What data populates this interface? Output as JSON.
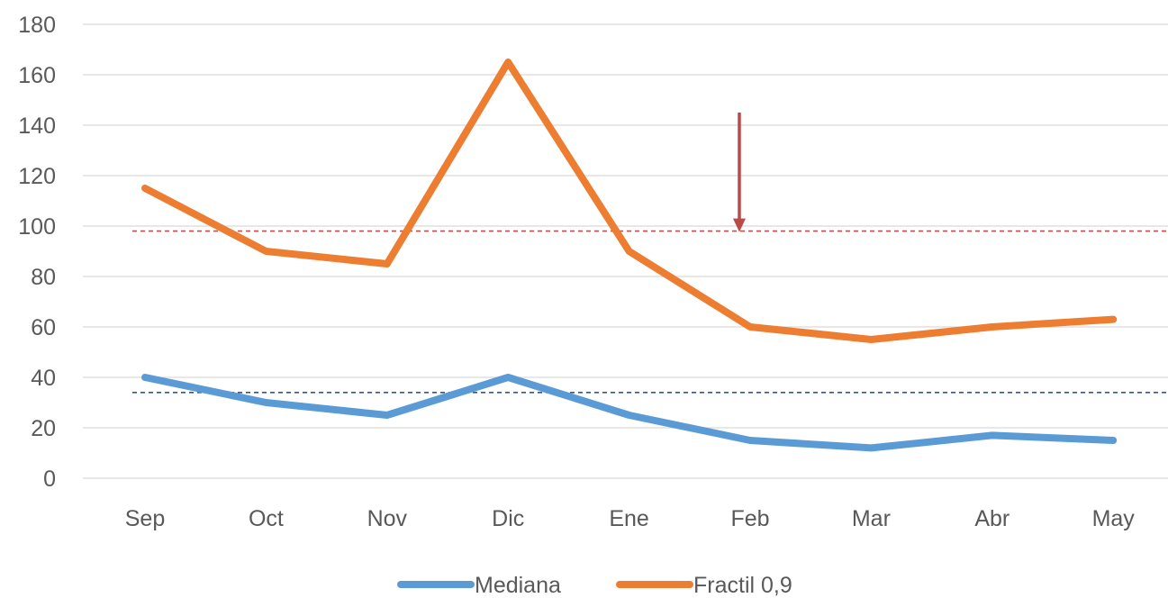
{
  "chart_data": {
    "type": "line",
    "title": "",
    "xlabel": "",
    "ylabel": "",
    "categories": [
      "Sep",
      "Oct",
      "Nov",
      "Dic",
      "Ene",
      "Feb",
      "Mar",
      "Abr",
      "May"
    ],
    "ylim": [
      0,
      180
    ],
    "yticks": [
      0,
      20,
      40,
      60,
      80,
      100,
      120,
      140,
      160,
      180
    ],
    "grid": true,
    "legend_position": "bottom",
    "series": [
      {
        "name": "Mediana",
        "color": "#5b9bd5",
        "values": [
          40,
          30,
          25,
          40,
          25,
          15,
          12,
          17,
          15
        ]
      },
      {
        "name": "Fractil 0,9",
        "color": "#ed7d31",
        "values": [
          115,
          90,
          85,
          165,
          90,
          60,
          55,
          60,
          63
        ]
      }
    ],
    "reference_lines": [
      {
        "value": 98,
        "color": "#c0504d",
        "style": "dashed"
      },
      {
        "value": 34,
        "color": "#2e5597",
        "style": "dashed"
      }
    ],
    "annotations": [
      {
        "type": "arrow",
        "direction": "down",
        "x_category": "Feb",
        "from_y": 145,
        "to_y": 98,
        "color": "#b94a48"
      }
    ]
  }
}
